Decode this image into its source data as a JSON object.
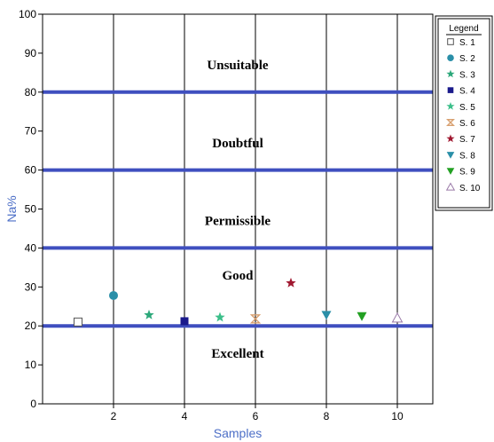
{
  "chart_data": {
    "type": "scatter",
    "xlabel": "Samples",
    "ylabel": "Na%",
    "xlim": [
      0,
      11
    ],
    "ylim": [
      0,
      100
    ],
    "xticks": [
      2,
      4,
      6,
      8,
      10
    ],
    "yticks": [
      0,
      10,
      20,
      30,
      40,
      50,
      60,
      70,
      80,
      90,
      100
    ],
    "grid": "vertical",
    "threshold_lines": [
      20,
      40,
      60,
      80
    ],
    "threshold_color": "#3f4fbf",
    "zones": [
      {
        "label": "Unsuitable",
        "y": 87
      },
      {
        "label": "Doubtful",
        "y": 67
      },
      {
        "label": "Permissible",
        "y": 47
      },
      {
        "label": "Good",
        "y": 33
      },
      {
        "label": "Excellent",
        "y": 13
      }
    ],
    "legend": {
      "title": "Legend",
      "placement": "right"
    },
    "series": [
      {
        "name": "S. 1",
        "x": 1,
        "y": 21,
        "marker": "square-open",
        "color": "#555555"
      },
      {
        "name": "S. 2",
        "x": 2,
        "y": 27.8,
        "marker": "circle",
        "color": "#2a8fa8"
      },
      {
        "name": "S. 3",
        "x": 3,
        "y": 22.8,
        "marker": "star",
        "color": "#2ca87a"
      },
      {
        "name": "S. 4",
        "x": 4,
        "y": 21.2,
        "marker": "square",
        "color": "#1a1a8c"
      },
      {
        "name": "S. 5",
        "x": 5,
        "y": 22.2,
        "marker": "star",
        "color": "#3cbf8a"
      },
      {
        "name": "S. 6",
        "x": 6,
        "y": 21.8,
        "marker": "hourglass",
        "color": "#d8a070"
      },
      {
        "name": "S. 7",
        "x": 7,
        "y": 31,
        "marker": "star",
        "color": "#a01830"
      },
      {
        "name": "S. 8",
        "x": 8,
        "y": 22.8,
        "marker": "triangle-down",
        "color": "#2a8fa8"
      },
      {
        "name": "S. 9",
        "x": 9,
        "y": 22.5,
        "marker": "triangle-down",
        "color": "#22a022"
      },
      {
        "name": "S. 10",
        "x": 10,
        "y": 22,
        "marker": "triangle-open",
        "color": "#9a7aa8"
      }
    ]
  }
}
